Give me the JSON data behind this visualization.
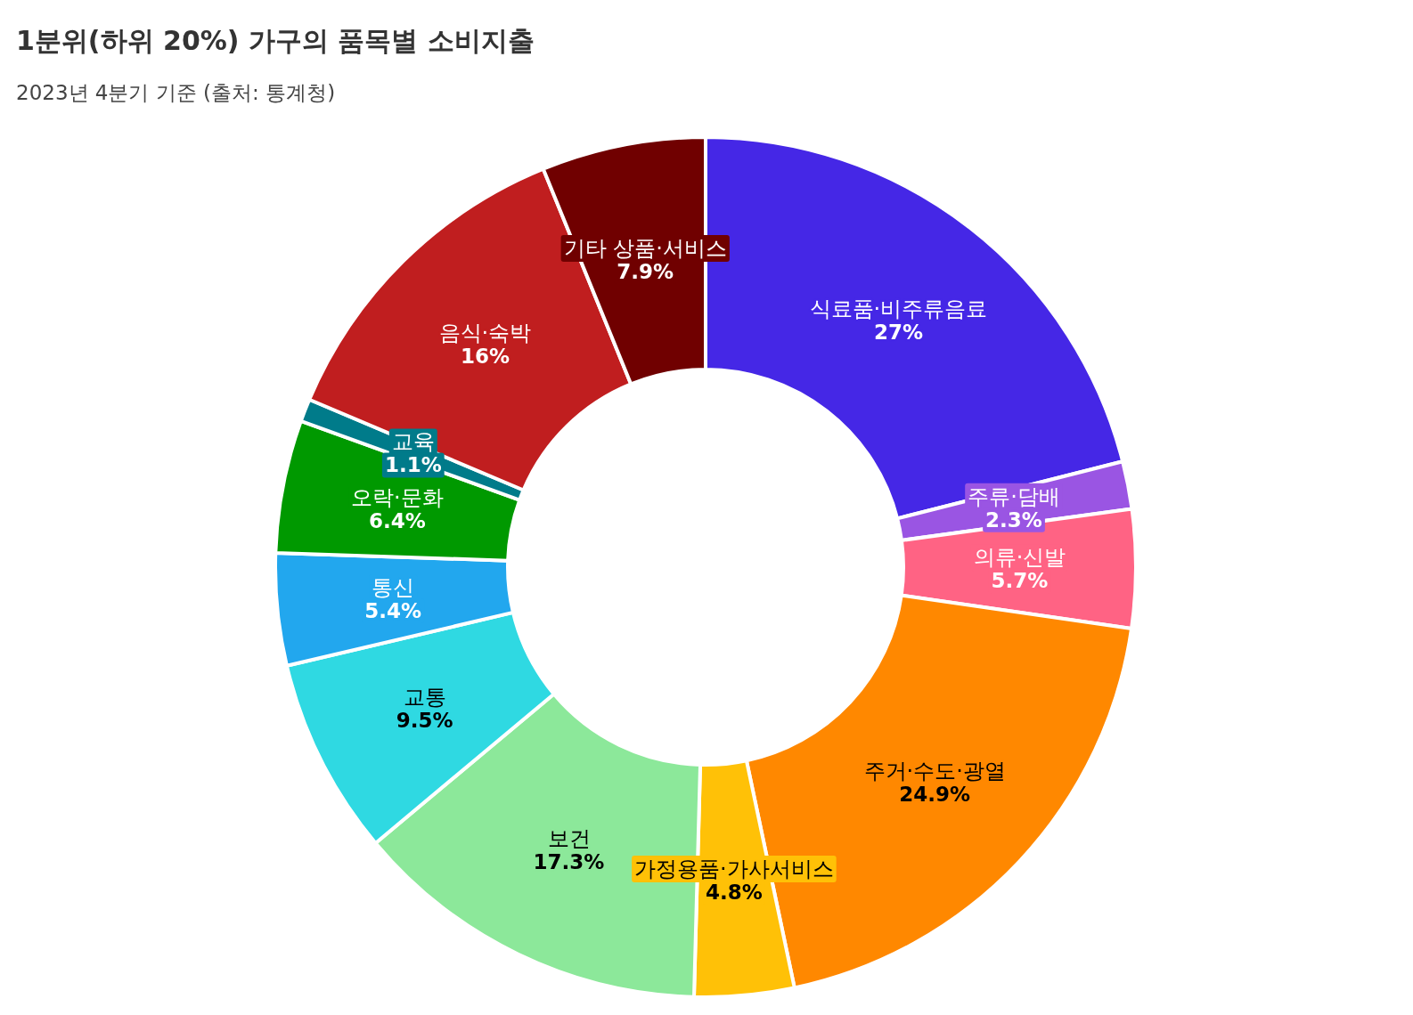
{
  "chart_data": {
    "type": "donut",
    "title": "1분위(하위 20%) 가구의 품목별 소비지출",
    "subtitle": "2023년 4분기 기준 (출처: 통계청)",
    "categories": [
      "식료품·비주류음료",
      "주류·담배",
      "의류·신발",
      "주거·수도·광열",
      "가정용품·가사서비스",
      "보건",
      "교통",
      "통신",
      "오락·문화",
      "교육",
      "음식·숙박",
      "기타 상품·서비스"
    ],
    "values": [
      27,
      2.3,
      5.7,
      24.9,
      4.8,
      17.3,
      9.5,
      5.4,
      6.4,
      1.1,
      16,
      7.9
    ],
    "value_labels": [
      "27%",
      "2.3%",
      "5.7%",
      "24.9%",
      "4.8%",
      "17.3%",
      "9.5%",
      "5.4%",
      "6.4%",
      "1.1%",
      "16%",
      "7.9%"
    ],
    "colors": [
      "#4527e6",
      "#9a55e3",
      "#ff6384",
      "#ff8800",
      "#ffc107",
      "#8ce89a",
      "#2fd9e2",
      "#22a7ee",
      "#009900",
      "#007b8a",
      "#c01e1f",
      "#700000"
    ]
  }
}
